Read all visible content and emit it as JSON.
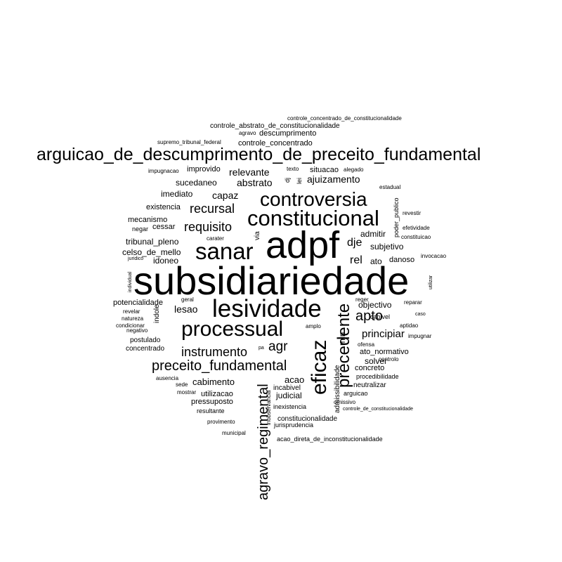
{
  "words": [
    "subsidiariedade",
    "adpf",
    "arguicao_de_descumprimento_de_preceito_fundamental",
    "lesividade",
    "sanar",
    "constitucional",
    "controversia",
    "processual",
    "eficaz",
    "agravo_regimental",
    "precedente",
    "preceito_fundamental",
    "instrumento",
    "requisito",
    "recursal",
    "apto",
    "agr",
    "principiar",
    "ajuizamento",
    "controle_abstrato_de_constitucionalidade",
    "controle_concentrado_de_constitucionalidade",
    "supremo_tribunal_federal",
    "agravo",
    "descumprimento",
    "controle_concentrado",
    "impugnacao",
    "improvido",
    "relevante",
    "abstrato",
    "texto",
    "situacao",
    "alegado",
    "dj",
    "lei",
    "sucedaneo",
    "imediato",
    "capaz",
    "estadual",
    "existencia",
    "mecanismo",
    "negar",
    "cessar",
    "tribunal_pleno",
    "celso_de_mello",
    "idoneo",
    "juridico",
    "individual",
    "carater",
    "via",
    "dje",
    "rel",
    "ato",
    "danoso",
    "subjetivo",
    "admitir",
    "poder_publico",
    "revestir",
    "efetividade",
    "constituicao",
    "invocacao",
    "utilizar",
    "potencialidade",
    "revelar",
    "natureza",
    "condicionar",
    "negativo",
    "postulado",
    "concentrado",
    "geral",
    "indole",
    "lesao",
    "reger",
    "objectivo",
    "reparar",
    "caso",
    "cabivel",
    "aptidao",
    "amplo",
    "min",
    "impugnar",
    "ofensa",
    "ato_normativo",
    "solver",
    "controlo",
    "concreto",
    "procedibilidade",
    "pa",
    "ausencia",
    "sede",
    "mostrar",
    "cabimento",
    "utilizacao",
    "pressuposto",
    "resultante",
    "provimento",
    "municipal",
    "acao",
    "incabivel",
    "judicial",
    "inexistencia",
    "inobservancia",
    "admissibilidade",
    "neutralizar",
    "arguicao",
    "omissivo",
    "constitucionalidade",
    "jurisprudencia",
    "controle_de_constitucionalidade",
    "acao_direta_de_inconstitucionalidade"
  ]
}
